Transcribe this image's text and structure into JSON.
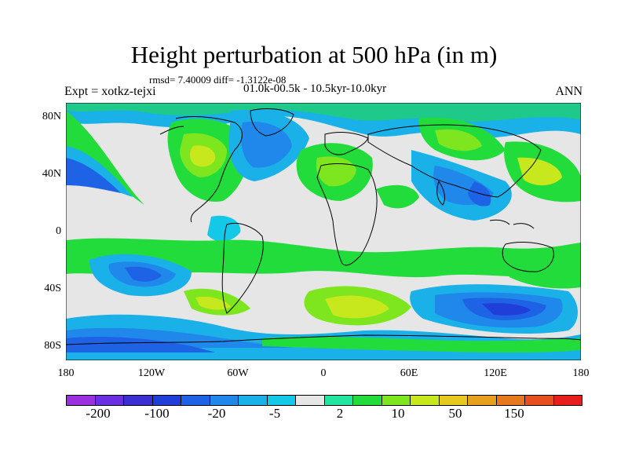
{
  "title": "Height perturbation at 500 hPa (in m)",
  "stats": "rmsd= 7.40009 diff= -1.3122e-08",
  "experiment": "Expt = xotkz-tejxi",
  "period": "01.0k-00.5k - 10.5kyr-10.0kyr",
  "season": "ANN",
  "y_axis_labels": [
    "80N",
    "40N",
    "0",
    "40S",
    "80S"
  ],
  "x_axis_labels": [
    "180",
    "120W",
    "60W",
    "0",
    "60E",
    "120E",
    "180"
  ],
  "colorbar": {
    "colors": [
      "#9b30e0",
      "#6a2fe0",
      "#3a2fd0",
      "#1f3fd8",
      "#1e63e6",
      "#1f88ea",
      "#1ab1e8",
      "#14c8e8",
      "#e6e6e6",
      "#22e6a0",
      "#22dc3c",
      "#7ee61e",
      "#c8e81e",
      "#e6c81e",
      "#e6a01e",
      "#e6781e",
      "#e6501e",
      "#e61e1e"
    ],
    "tick_labels": [
      "-200",
      "-100",
      "-20",
      "-5",
      "2",
      "10",
      "50",
      "150"
    ]
  },
  "legend_levels": [
    "-200",
    "-100",
    "-20",
    "-5",
    "2",
    "10",
    "50",
    "150"
  ]
}
